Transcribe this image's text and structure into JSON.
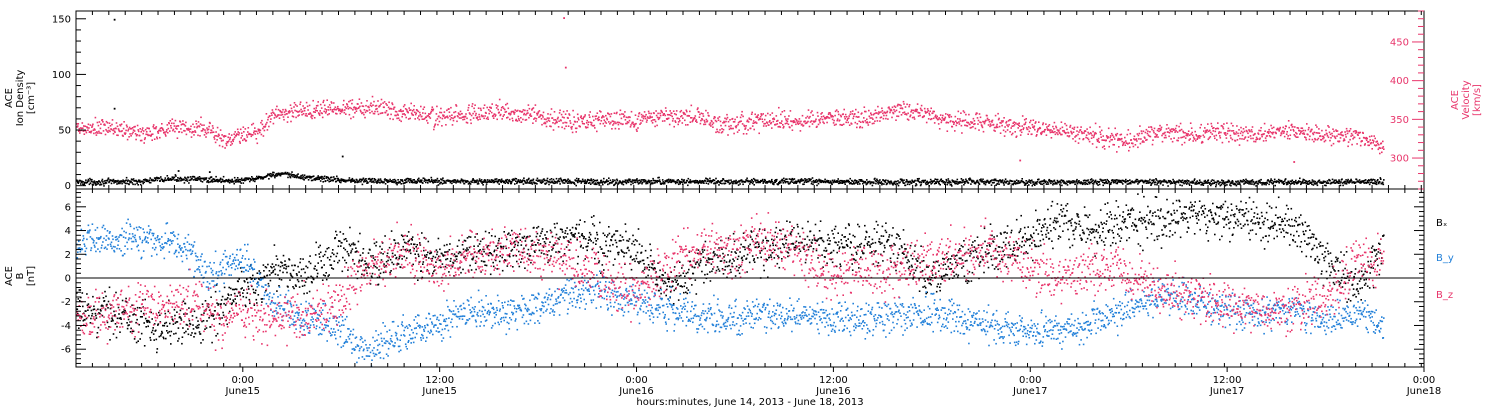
{
  "chart_data": {
    "type": "scatter",
    "time": {
      "start": "2013-06-14T13:50",
      "end": "2013-06-18T00:00",
      "data_end": "2013-06-17T21:30",
      "xlabel": "hours:minutes, June 14, 2013 - June 18, 2013",
      "ticks": [
        {
          "time": "2013-06-15T00:00",
          "label": "0:00",
          "sub": "June15"
        },
        {
          "time": "2013-06-15T12:00",
          "label": "12:00",
          "sub": "June15"
        },
        {
          "time": "2013-06-16T00:00",
          "label": "0:00",
          "sub": "June16"
        },
        {
          "time": "2013-06-16T12:00",
          "label": "12:00",
          "sub": "June16"
        },
        {
          "time": "2013-06-17T00:00",
          "label": "0:00",
          "sub": "June17"
        },
        {
          "time": "2013-06-17T12:00",
          "label": "12:00",
          "sub": "June17"
        },
        {
          "time": "2013-06-18T00:00",
          "label": "0:00",
          "sub": "June18"
        }
      ]
    },
    "panels": [
      {
        "id": "plasma",
        "ylabel": [
          "ACE",
          "Ion Density",
          "[cm⁻³]"
        ],
        "ylabel_right": [
          "ACE",
          "Velocity",
          "[km/s]"
        ],
        "ylim": [
          -3,
          157
        ],
        "ylim_right": [
          260,
          490
        ],
        "yticks": [
          {
            "v": 0,
            "label": "0"
          },
          {
            "v": 50,
            "label": "50"
          },
          {
            "v": 100,
            "label": "100"
          },
          {
            "v": 150,
            "label": "150"
          }
        ],
        "yticks_right": [
          {
            "v": 300,
            "label": "300"
          },
          {
            "v": 350,
            "label": "350"
          },
          {
            "v": 400,
            "label": "400"
          },
          {
            "v": 450,
            "label": "450"
          }
        ],
        "series": [
          {
            "key": "density",
            "axis": "left",
            "color": "#000000",
            "x": [
              0,
              2,
              4,
              5,
              6,
              8,
              10,
              11,
              12,
              13,
              14,
              15,
              16,
              17,
              18,
              20,
              24,
              28,
              32,
              36,
              40,
              44,
              48,
              52,
              56,
              60,
              64,
              68,
              72,
              76,
              80,
              83
            ],
            "y": [
              4,
              4,
              4.5,
              6,
              7,
              6,
              5,
              7,
              11,
              10,
              8,
              7,
              6,
              5,
              5,
              5,
              4.5,
              4.5,
              4,
              4.5,
              4,
              4.5,
              4,
              4,
              4,
              3.5,
              4,
              3.5,
              3.5,
              4,
              4,
              3.5
            ],
            "noise": 1.3
          },
          {
            "key": "velocity",
            "axis": "right",
            "color": "#e8356b",
            "x": [
              0,
              2,
              4,
              6,
              7,
              8,
              9,
              10,
              11,
              12,
              13,
              14,
              16,
              18,
              20,
              22,
              24,
              26,
              28,
              30,
              32,
              34,
              36,
              38,
              40,
              42,
              44,
              46,
              48,
              50,
              52,
              54,
              56,
              58,
              60,
              62,
              64,
              66,
              68,
              70,
              72,
              74,
              76,
              78,
              80,
              82,
              83
            ],
            "y": [
              337,
              340,
              332,
              342,
              338,
              340,
              322,
              330,
              332,
              358,
              360,
              363,
              365,
              368,
              361,
              353,
              358,
              361,
              355,
              349,
              351,
              349,
              356,
              353,
              344,
              350,
              349,
              353,
              351,
              364,
              356,
              348,
              346,
              341,
              337,
              330,
              321,
              337,
              330,
              334,
              330,
              338,
              331,
              328,
              315,
              310,
              300
            ],
            "noise": 6
          }
        ],
        "outliers": [
          {
            "series": "density",
            "x": [
              2.3,
              2.3,
              6.2,
              8.2,
              16.2,
              8.1
            ],
            "y": [
              150,
              70,
              14,
              8.5,
              27,
              13
            ]
          },
          {
            "series": "velocity",
            "x": [
              29.7,
              29.8,
              57.5,
              74.2
            ],
            "y": [
              482,
              418,
              298,
              296
            ]
          }
        ]
      },
      {
        "id": "mag",
        "ylabel": [
          "ACE",
          "B",
          "[nT]"
        ],
        "ylim": [
          -7.5,
          7.5
        ],
        "yticks": [
          {
            "v": -6,
            "label": "-6"
          },
          {
            "v": -4,
            "label": "-4"
          },
          {
            "v": -2,
            "label": "-2"
          },
          {
            "v": 0,
            "label": "0"
          },
          {
            "v": 2,
            "label": "2"
          },
          {
            "v": 4,
            "label": "4"
          },
          {
            "v": 6,
            "label": "6"
          }
        ],
        "zero_line": true,
        "series": [
          {
            "key": "bx",
            "name": "Bₓ",
            "color": "#000000",
            "x": [
              0,
              2,
              4,
              6,
              8,
              10,
              11,
              12,
              14,
              16,
              18,
              20,
              22,
              24,
              26,
              28,
              30,
              32,
              34,
              36,
              38,
              40,
              42,
              44,
              46,
              48,
              50,
              52,
              54,
              56,
              58,
              60,
              62,
              64,
              66,
              68,
              70,
              72,
              74,
              76,
              78,
              80,
              82,
              83
            ],
            "y": [
              -2.8,
              -2.7,
              -3.8,
              -4,
              -3.3,
              -1,
              -0.5,
              1,
              0,
              2.5,
              1,
              2.5,
              1.5,
              2,
              2.5,
              3,
              3.5,
              3,
              2.5,
              -1,
              1,
              2,
              2.5,
              3,
              3,
              3,
              2.8,
              0,
              1.5,
              2.2,
              3.5,
              4.5,
              4,
              5,
              4.8,
              5.5,
              5,
              4.8,
              4.5,
              2,
              -1,
              3.5,
              4,
              4.5
            ],
            "noise": 0.9
          },
          {
            "key": "by",
            "name": "B_y",
            "color": "#2280d9",
            "x": [
              0,
              2,
              4,
              6,
              7,
              8,
              9,
              10,
              12,
              14,
              16,
              17,
              18,
              20,
              22,
              24,
              26,
              28,
              30,
              32,
              34,
              36,
              38,
              40,
              42,
              44,
              46,
              48,
              50,
              52,
              54,
              56,
              58,
              60,
              62,
              64,
              66,
              68,
              70,
              72,
              74,
              76,
              78,
              80,
              82,
              83
            ],
            "y": [
              3,
              3.2,
              3.4,
              3,
              2.2,
              0,
              1,
              2,
              -2,
              -3.5,
              -4,
              -5.5,
              -6,
              -4.5,
              -3.8,
              -3,
              -3,
              -2.5,
              -1.5,
              -1,
              -2,
              -2.5,
              -3,
              -3.5,
              -3,
              -3,
              -3.5,
              -3.5,
              -3,
              -2.8,
              -3.5,
              -4,
              -4.5,
              -4.5,
              -3.5,
              -2.5,
              -1.5,
              -1.8,
              -2.5,
              -3,
              -2.5,
              -3.5,
              -3,
              -4,
              -5,
              -4.5
            ],
            "noise": 0.7
          },
          {
            "key": "bz",
            "name": "B_z",
            "color": "#e8356b",
            "x": [
              0,
              2,
              4,
              6,
              7,
              8,
              9,
              10,
              12,
              14,
              16,
              17,
              18,
              20,
              22,
              24,
              26,
              28,
              30,
              32,
              34,
              36,
              38,
              40,
              42,
              44,
              46,
              48,
              50,
              52,
              54,
              56,
              58,
              60,
              62,
              64,
              66,
              68,
              70,
              72,
              74,
              76,
              78,
              80,
              82,
              83
            ],
            "y": [
              -3,
              -3,
              -2.5,
              -2,
              -1.5,
              -3,
              -4,
              -3,
              -3.5,
              -3,
              -2,
              0,
              1,
              2.5,
              1,
              2,
              2.5,
              2,
              1.5,
              0,
              -1,
              1,
              3,
              2.5,
              3,
              2.5,
              0,
              1,
              0.5,
              1.5,
              2,
              2.5,
              1,
              0,
              1,
              0.5,
              -1,
              -1.5,
              -2,
              -2.5,
              -2.5,
              -1.5,
              1,
              2,
              1.5,
              -1
            ],
            "noise": 1
          }
        ]
      }
    ]
  }
}
